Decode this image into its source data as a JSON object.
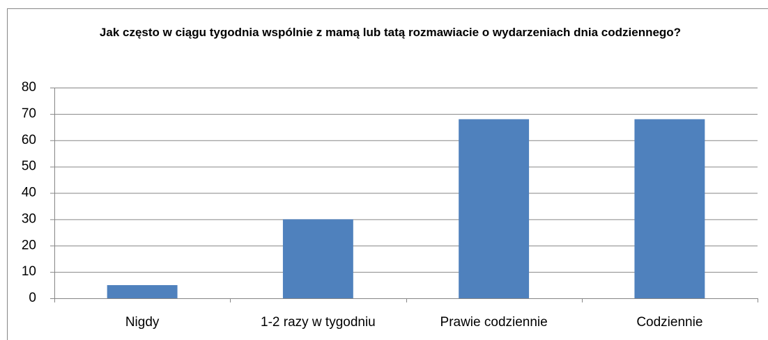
{
  "chart_data": {
    "type": "bar",
    "title": "Jak często w ciągu tygodnia wspólnie z mamą lub tatą rozmawiacie o wydarzeniach dnia codziennego?",
    "categories": [
      "Nigdy",
      "1-2 razy w tygodniu",
      "Prawie codziennie",
      "Codziennie"
    ],
    "values": [
      5,
      30,
      68,
      68
    ],
    "color": "#4f81bd",
    "ylim": [
      0,
      80
    ],
    "yticks": [
      0,
      10,
      20,
      30,
      40,
      50,
      60,
      70,
      80
    ],
    "grid": true
  }
}
